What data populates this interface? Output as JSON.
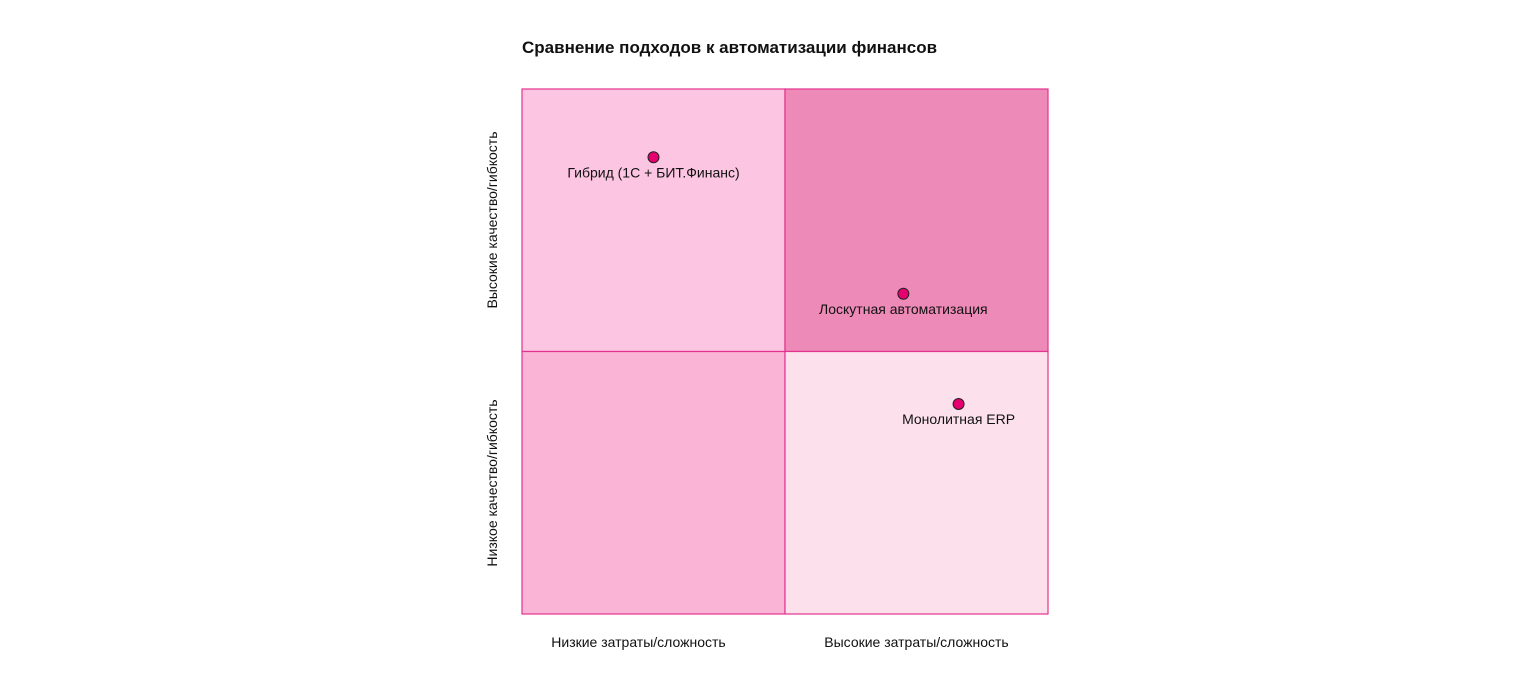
{
  "chart_data": {
    "type": "scatter",
    "subtype": "quadrant",
    "title": "Сравнение подходов к автоматизации финансов",
    "x_axis": {
      "low_label": "Низкие затраты/сложность",
      "high_label": "Высокие затраты/сложность",
      "range": [
        0,
        1
      ]
    },
    "y_axis": {
      "low_label": "Низкое качество/гибкость",
      "high_label": "Высокие качество/гибкость",
      "range": [
        0,
        1
      ]
    },
    "quadrant_colors": {
      "top_left": "#fcc5e2",
      "top_right": "#ee8ab8",
      "bottom_left": "#f9b4d6",
      "bottom_right": "#fce1ec"
    },
    "border_color": "#e3338e",
    "point_color": "#e6006f",
    "points": [
      {
        "label": "Гибрид (1С + БИТ.Финанс)",
        "x": 0.25,
        "y": 0.87
      },
      {
        "label": "Лоскутная автоматизация",
        "x": 0.725,
        "y": 0.61
      },
      {
        "label": "Монолитная ERP",
        "x": 0.83,
        "y": 0.4
      }
    ]
  }
}
